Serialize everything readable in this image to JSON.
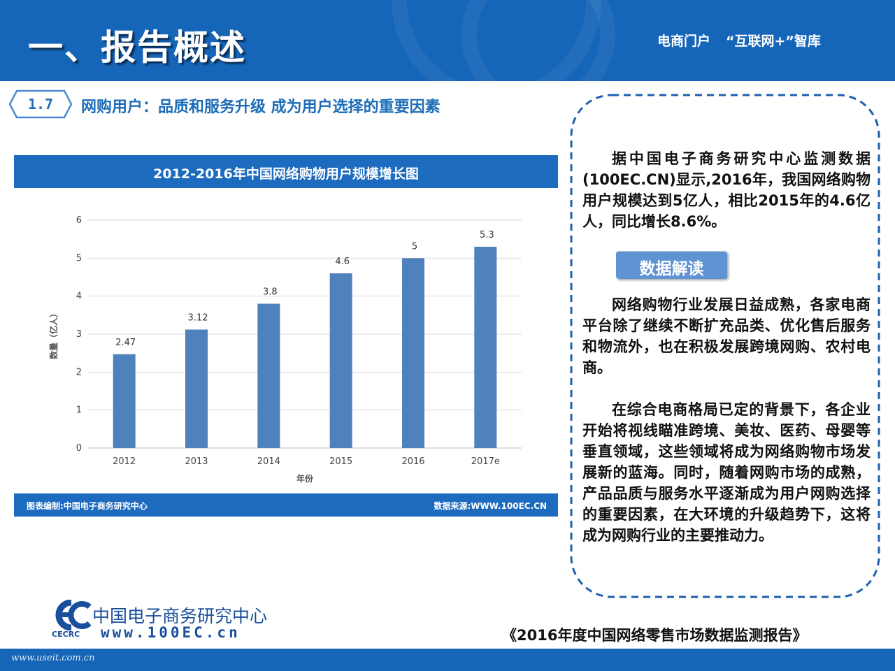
{
  "header": {
    "title": "一、报告概述",
    "tagline_left": "电商门户",
    "tagline_right": "“互联网+”智库"
  },
  "section": {
    "number": "1.7",
    "heading": "网购用户：品质和服务升级 成为用户选择的重要因素"
  },
  "chart_footer": {
    "left": "图表编制:中国电子商务研究中心",
    "right": "数据来源:WWW.100EC.CN"
  },
  "chart_data": {
    "type": "bar",
    "title": "2012-2016年中国网络购物用户规模增长图",
    "categories": [
      "2012",
      "2013",
      "2014",
      "2015",
      "2016",
      "2017e"
    ],
    "values": [
      2.47,
      3.12,
      3.8,
      4.6,
      5,
      5.3
    ],
    "value_labels": [
      "2.47",
      "3.12",
      "3.8",
      "4.6",
      "5",
      "5.3"
    ],
    "xlabel": "年份",
    "ylabel": "数量（亿人）",
    "ylim": [
      0,
      6
    ],
    "yticks": [
      "0",
      "1",
      "2",
      "3",
      "4",
      "5",
      "6"
    ],
    "grid": true,
    "bar_color": "#4f81bd"
  },
  "panel": {
    "para1": "据中国电子商务研究中心监测数据(100EC.CN)显示,2016年，我国网络购物用户规模达到5亿人，相比2015年的4.6亿人，同比增长8.6%。",
    "badge": "数据解读",
    "para2": "网络购物行业发展日益成熟，各家电商平台除了继续不断扩充品类、优化售后服务和物流外，也在积极发展跨境网购、农村电商。",
    "para3": "在综合电商格局已定的背景下，各企业开始将视线瞄准跨境、美妆、医药、母婴等垂直领域，这些领域将成为网络购物市场发展新的蓝海。同时，随着网购市场的成熟，产品品质与服务水平逐渐成为用户网购选择的重要因素，在大环境的升级趋势下，这将成为网购行业的主要推动力。"
  },
  "footer": {
    "logo_cn": "中国电子商务研究中心",
    "logo_abbr": "CECRC",
    "logo_url": "www.100EC.cn",
    "report_title": "《2016年度中国网络零售市场数据监测报告》",
    "watermark": "www.useit.com.cn"
  },
  "colors": {
    "brand_blue": "#1565b8",
    "chart_band": "#1c6bbf",
    "heading_blue": "#1e6db8",
    "badge_blue": "#5f93d2"
  }
}
